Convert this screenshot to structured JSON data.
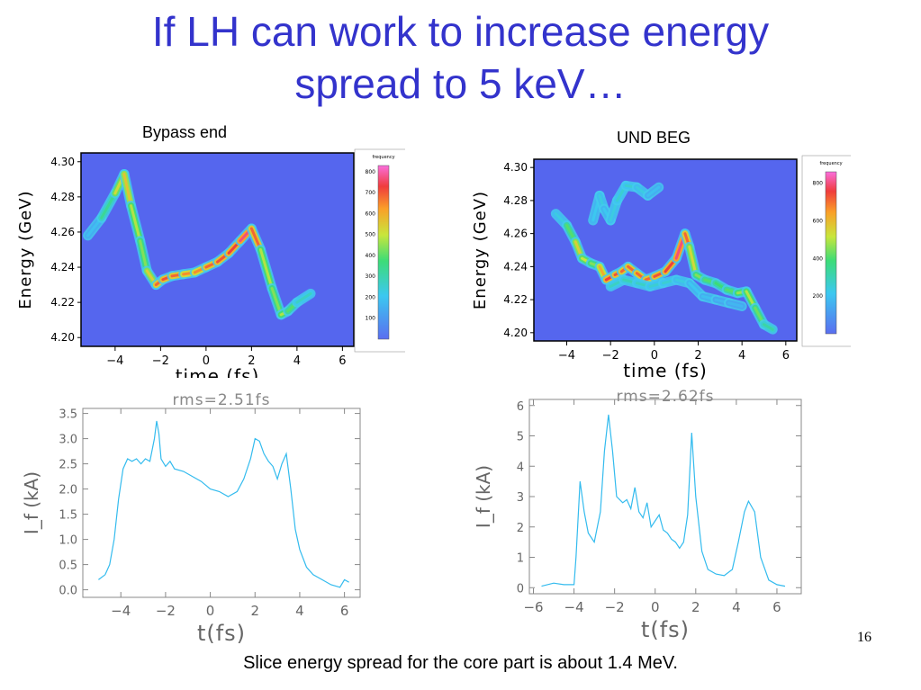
{
  "slide": {
    "title_line1": "If LH can work to increase energy",
    "title_line2": "spread to 5 keV…",
    "label_left": "Bypass end",
    "label_right": "UND BEG",
    "caption": "Slice energy spread for the core part is about 1.4 MeV.",
    "page_number": "16"
  },
  "chart_data": [
    {
      "type": "heatmap",
      "title": "Bypass end",
      "xlabel": "time (fs)",
      "ylabel": "Energy (GeV)",
      "xlim": [
        -5.5,
        6.5
      ],
      "ylim": [
        4.195,
        4.305
      ],
      "xticks": [
        "−4",
        "−2",
        "0",
        "2",
        "4",
        "6"
      ],
      "yticks": [
        "4.20",
        "4.22",
        "4.24",
        "4.26",
        "4.28",
        "4.30"
      ],
      "colorbar_label": "frequency",
      "colorbar_ticks": [
        "100",
        "200",
        "300",
        "400",
        "500",
        "600",
        "700",
        "800"
      ],
      "background_color": "#5566ee",
      "ridges": [
        {
          "x": [
            -5.2,
            -4.6,
            -4.0,
            -3.6,
            -3.3,
            -2.9,
            -2.6,
            -2.2,
            -1.9,
            -1.5,
            -1.0,
            -0.5,
            0,
            0.5,
            1.0,
            1.5,
            2.0,
            2.4,
            2.9,
            3.3,
            3.6,
            4.0,
            4.6
          ],
          "y": [
            4.258,
            4.268,
            4.282,
            4.293,
            4.275,
            4.255,
            4.238,
            4.23,
            4.233,
            4.235,
            4.236,
            4.237,
            4.24,
            4.243,
            4.248,
            4.255,
            4.262,
            4.25,
            4.228,
            4.213,
            4.215,
            4.22,
            4.225
          ],
          "intensity": [
            0.15,
            0.3,
            0.5,
            0.75,
            0.6,
            0.55,
            0.5,
            0.8,
            0.85,
            0.85,
            0.8,
            0.75,
            0.8,
            0.85,
            0.85,
            0.9,
            0.95,
            0.7,
            0.45,
            0.6,
            0.55,
            0.4,
            0.25
          ]
        }
      ]
    },
    {
      "type": "heatmap",
      "title": "UND BEG",
      "xlabel": "time (fs)",
      "ylabel": "Energy (GeV)",
      "xlim": [
        -5.5,
        6.5
      ],
      "ylim": [
        4.195,
        4.305
      ],
      "xticks": [
        "−4",
        "−2",
        "0",
        "2",
        "4",
        "6"
      ],
      "yticks": [
        "4.20",
        "4.22",
        "4.24",
        "4.26",
        "4.28",
        "4.30"
      ],
      "colorbar_label": "frequency",
      "colorbar_ticks": [
        "200",
        "400",
        "600",
        "800"
      ],
      "background_color": "#5566ee",
      "ridges": [
        {
          "x": [
            -4.5,
            -4.0,
            -3.6,
            -3.3,
            -2.9,
            -2.5,
            -2.2,
            -1.8,
            -1.5,
            -1.2,
            -0.8,
            -0.4,
            0,
            0.5,
            1.0,
            1.4,
            1.6,
            1.9,
            2.3,
            2.8,
            3.3,
            3.8,
            4.2,
            4.6,
            5.0,
            5.4
          ],
          "y": [
            4.272,
            4.265,
            4.255,
            4.245,
            4.242,
            4.24,
            4.232,
            4.235,
            4.237,
            4.24,
            4.236,
            4.232,
            4.234,
            4.237,
            4.245,
            4.26,
            4.252,
            4.235,
            4.232,
            4.23,
            4.226,
            4.224,
            4.225,
            4.215,
            4.205,
            4.202
          ],
          "intensity": [
            0.2,
            0.35,
            0.6,
            0.7,
            0.5,
            0.55,
            0.9,
            0.85,
            0.85,
            0.8,
            0.85,
            0.8,
            0.85,
            0.85,
            0.9,
            0.95,
            0.7,
            0.55,
            0.5,
            0.45,
            0.45,
            0.5,
            0.6,
            0.55,
            0.45,
            0.3
          ]
        },
        {
          "x": [
            -2.8,
            -2.5,
            -2.3,
            -2.0,
            -1.7,
            -1.3,
            -0.8,
            -0.3,
            0.2
          ],
          "y": [
            4.268,
            4.283,
            4.275,
            4.268,
            4.28,
            4.289,
            4.288,
            4.283,
            4.288
          ],
          "intensity": [
            0.2,
            0.3,
            0.25,
            0.25,
            0.3,
            0.3,
            0.3,
            0.25,
            0.2
          ]
        },
        {
          "x": [
            -2.0,
            -1.4,
            -0.8,
            -0.2,
            0.4,
            1.0,
            1.6,
            2.2,
            2.8,
            3.4,
            4.0
          ],
          "y": [
            4.228,
            4.232,
            4.23,
            4.228,
            4.23,
            4.232,
            4.23,
            4.222,
            4.22,
            4.218,
            4.216
          ],
          "intensity": [
            0.3,
            0.35,
            0.35,
            0.3,
            0.3,
            0.3,
            0.25,
            0.25,
            0.2,
            0.2,
            0.2
          ]
        }
      ]
    },
    {
      "type": "line",
      "title": "rms=2.51fs",
      "xlabel": "t(fs)",
      "ylabel": "I_f (kA)",
      "xlim": [
        -5.7,
        6.7
      ],
      "ylim": [
        -0.15,
        3.6
      ],
      "xticks": [
        "−4",
        "−2",
        "0",
        "2",
        "4",
        "6"
      ],
      "yticks": [
        "0.0",
        "0.5",
        "1.0",
        "1.5",
        "2.0",
        "2.5",
        "3.0",
        "3.5"
      ],
      "series": [
        {
          "color": "#33bbee",
          "x": [
            -5.0,
            -4.7,
            -4.5,
            -4.3,
            -4.1,
            -3.9,
            -3.7,
            -3.5,
            -3.3,
            -3.1,
            -2.9,
            -2.7,
            -2.5,
            -2.4,
            -2.3,
            -2.2,
            -2.0,
            -1.8,
            -1.6,
            -1.2,
            -0.8,
            -0.4,
            0,
            0.4,
            0.8,
            1.2,
            1.5,
            1.8,
            2.0,
            2.2,
            2.4,
            2.6,
            2.8,
            3.0,
            3.2,
            3.4,
            3.6,
            3.8,
            4.0,
            4.3,
            4.6,
            5.0,
            5.4,
            5.8,
            6.0,
            6.2
          ],
          "y": [
            0.2,
            0.3,
            0.5,
            1.0,
            1.8,
            2.4,
            2.6,
            2.55,
            2.6,
            2.5,
            2.6,
            2.55,
            3.0,
            3.35,
            3.1,
            2.6,
            2.45,
            2.55,
            2.4,
            2.35,
            2.25,
            2.15,
            2.0,
            1.95,
            1.85,
            1.95,
            2.2,
            2.6,
            3.0,
            2.95,
            2.7,
            2.55,
            2.45,
            2.2,
            2.5,
            2.7,
            2.0,
            1.2,
            0.8,
            0.45,
            0.3,
            0.2,
            0.1,
            0.05,
            0.2,
            0.15
          ]
        }
      ]
    },
    {
      "type": "line",
      "title": "rms=2.62fs",
      "xlabel": "t(fs)",
      "ylabel": "I_f (kA)",
      "xlim": [
        -6.2,
        7.2
      ],
      "ylim": [
        -0.2,
        6.2
      ],
      "xticks": [
        "−6",
        "−4",
        "−2",
        "0",
        "2",
        "4",
        "6"
      ],
      "yticks": [
        "0",
        "1",
        "2",
        "3",
        "4",
        "5",
        "6"
      ],
      "series": [
        {
          "color": "#33bbee",
          "x": [
            -5.6,
            -5.0,
            -4.5,
            -4.0,
            -3.9,
            -3.7,
            -3.5,
            -3.3,
            -3.0,
            -2.7,
            -2.5,
            -2.3,
            -2.1,
            -1.9,
            -1.6,
            -1.4,
            -1.2,
            -1.0,
            -0.8,
            -0.6,
            -0.4,
            -0.2,
            0,
            0.2,
            0.4,
            0.6,
            0.8,
            1.0,
            1.2,
            1.4,
            1.6,
            1.8,
            2.0,
            2.3,
            2.6,
            3.0,
            3.4,
            3.8,
            4.1,
            4.4,
            4.6,
            4.9,
            5.2,
            5.6,
            6.0,
            6.4
          ],
          "y": [
            0.05,
            0.15,
            0.1,
            0.1,
            1.0,
            3.5,
            2.5,
            1.8,
            1.5,
            2.5,
            4.5,
            5.7,
            4.5,
            3.0,
            2.8,
            2.9,
            2.6,
            3.3,
            2.5,
            2.3,
            2.8,
            2.0,
            2.2,
            2.4,
            1.9,
            1.8,
            1.6,
            1.5,
            1.3,
            1.5,
            2.4,
            5.1,
            3.0,
            1.2,
            0.6,
            0.45,
            0.4,
            0.6,
            1.5,
            2.5,
            2.85,
            2.5,
            1.0,
            0.25,
            0.1,
            0.05
          ]
        }
      ]
    }
  ]
}
